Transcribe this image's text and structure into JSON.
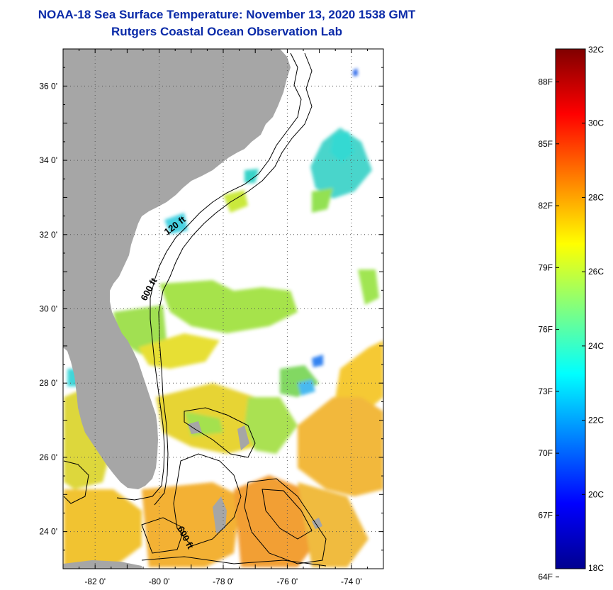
{
  "header": {
    "title": "NOAA-18 Sea Surface Temperature:  November 13, 2020 1538 GMT",
    "subtitle": "Rutgers Coastal Ocean Observation Lab"
  },
  "map": {
    "lon_range": [
      -83,
      -73
    ],
    "lat_range": [
      23,
      37
    ],
    "lat_ticks": [
      {
        "value": 36,
        "label": "36 0'"
      },
      {
        "value": 34,
        "label": "34 0'"
      },
      {
        "value": 32,
        "label": "32 0'"
      },
      {
        "value": 30,
        "label": "30 0'"
      },
      {
        "value": 28,
        "label": "28 0'"
      },
      {
        "value": 26,
        "label": "26 0'"
      },
      {
        "value": 24,
        "label": "24 0'"
      }
    ],
    "lon_ticks": [
      {
        "value": -82,
        "label": "-82 0'"
      },
      {
        "value": -80,
        "label": "-80 0'"
      },
      {
        "value": -78,
        "label": "-78 0'"
      },
      {
        "value": -76,
        "label": "-76 0'"
      },
      {
        "value": -74,
        "label": "-74 0'"
      }
    ],
    "contour_labels": [
      "120 ft",
      "600 ft",
      "600 ft"
    ],
    "colors": {
      "land": "#a6a6a6",
      "cloud": "#ffffff",
      "grid": "#555555"
    }
  },
  "colorbar": {
    "celsius": [
      {
        "value": 32,
        "label": "32C"
      },
      {
        "value": 30,
        "label": "30C"
      },
      {
        "value": 28,
        "label": "28C"
      },
      {
        "value": 26,
        "label": "26C"
      },
      {
        "value": 24,
        "label": "24C"
      },
      {
        "value": 22,
        "label": "22C"
      },
      {
        "value": 20,
        "label": "20C"
      },
      {
        "value": 18,
        "label": "18C"
      }
    ],
    "fahrenheit": [
      {
        "value": 88,
        "label": "88F"
      },
      {
        "value": 85,
        "label": "85F"
      },
      {
        "value": 82,
        "label": "82F"
      },
      {
        "value": 79,
        "label": "79F"
      },
      {
        "value": 76,
        "label": "76F"
      },
      {
        "value": 73,
        "label": "73F"
      },
      {
        "value": 70,
        "label": "70F"
      },
      {
        "value": 67,
        "label": "67F"
      },
      {
        "value": 64,
        "label": "64F"
      }
    ],
    "gradient": [
      "#00008f",
      "#0000ff",
      "#0080ff",
      "#00ffff",
      "#80ff80",
      "#ffff00",
      "#ff8000",
      "#ff0000",
      "#800000"
    ]
  }
}
